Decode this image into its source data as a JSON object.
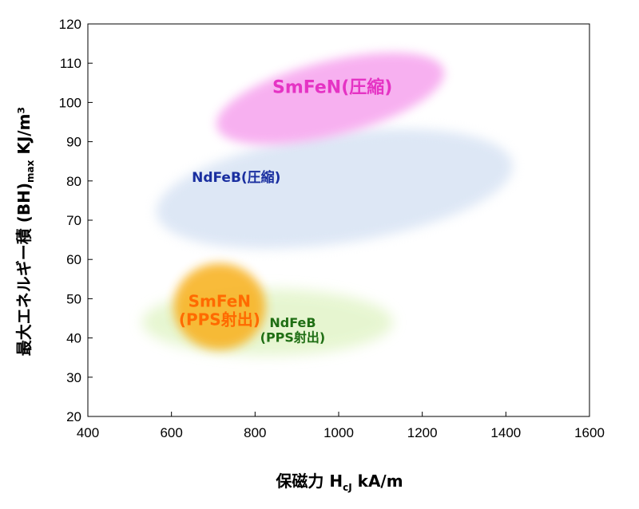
{
  "chart_data": {
    "type": "scatter",
    "title": "",
    "xlabel": {
      "main": "保磁力 H",
      "sub": "cJ",
      "unit": " kA/m"
    },
    "ylabel": {
      "main": "最大エネルギー積 (BH)",
      "sub": "max",
      "unit": "  KJ/m³"
    },
    "xlim": [
      400,
      1600
    ],
    "ylim": [
      20,
      120
    ],
    "x_ticks": [
      400,
      600,
      800,
      1000,
      1200,
      1400,
      1600
    ],
    "y_ticks": [
      20,
      30,
      40,
      50,
      60,
      70,
      80,
      90,
      100,
      110,
      120
    ],
    "grid": false,
    "regions": [
      {
        "label_lines": [
          "NdFeB(圧縮)"
        ],
        "center": [
          990,
          78
        ],
        "radius_x": 430,
        "radius_y": 14,
        "rotation_deg": -8,
        "fill": "#dce6f5",
        "label_color": "#1a2fa0",
        "label_at": [
          755,
          81
        ],
        "label_size": 17
      },
      {
        "label_lines": [
          "SmFeN(圧縮)"
        ],
        "center": [
          980,
          101
        ],
        "radius_x": 280,
        "radius_y": 9.5,
        "rotation_deg": -14,
        "fill": "#f7a8ef",
        "label_color": "#e533c4",
        "label_at": [
          985,
          104
        ],
        "label_size": 22
      },
      {
        "label_lines": [
          "NdFeB",
          "(PPS射出)"
        ],
        "center": [
          830,
          44
        ],
        "radius_x": 300,
        "radius_y": 8.5,
        "rotation_deg": 0,
        "fill": "#e4f5cc",
        "label_color": "#1f6e14",
        "label_at": [
          890,
          42
        ],
        "label_size": 16
      },
      {
        "label_lines": [
          "SmFeN",
          "(PPS射出)"
        ],
        "center": [
          715,
          48
        ],
        "radius_x": 110,
        "radius_y": 11,
        "rotation_deg": 0,
        "fill": "#f8b428",
        "label_color": "#ff6a00",
        "label_at": [
          715,
          47
        ],
        "label_size": 20
      }
    ]
  }
}
